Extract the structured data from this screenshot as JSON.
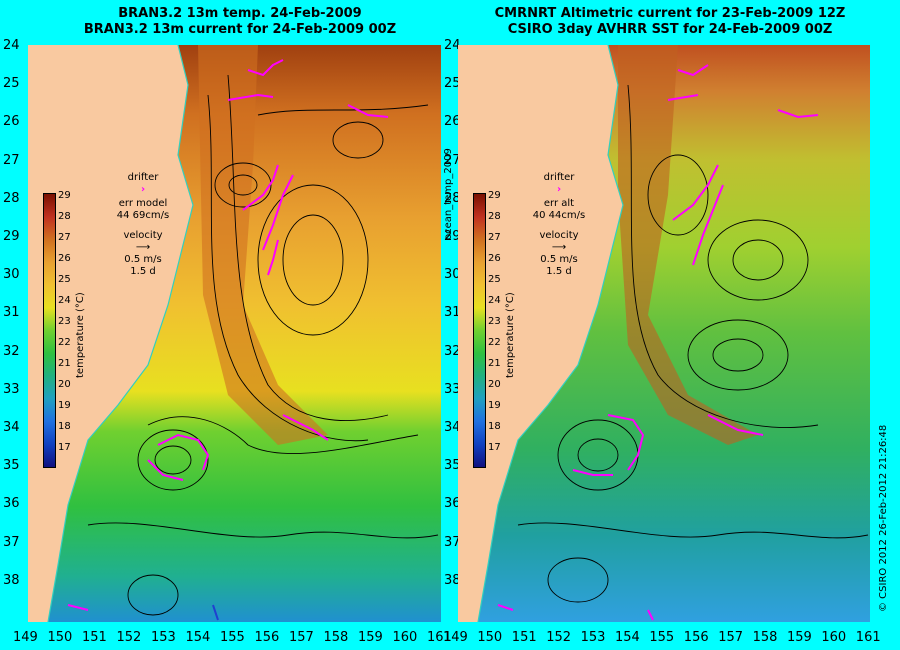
{
  "left_panel": {
    "title_line1": "BRAN3.2 13m temp. 24-Feb-2009",
    "title_line2": "BRAN3.2 13m current for 24-Feb-2009 00Z",
    "legend": {
      "drifter_label": "drifter",
      "err_label": "err model",
      "err_value": "44 69cm/s",
      "velocity_label": "velocity",
      "speed": "0.5 m/s",
      "duration": "1.5 d"
    }
  },
  "right_panel": {
    "title_line1": "CMRNRT Altimetric current for 23-Feb-2009 12Z",
    "title_line2": "CSIRO 3day AVHRR SST for 24-Feb-2009 00Z",
    "legend": {
      "drifter_label": "drifter",
      "err_label": "err alt",
      "err_value": "40 44cm/s",
      "velocity_label": "velocity",
      "speed": "0.5 m/s",
      "duration": "1.5 d"
    }
  },
  "colorbar": {
    "label": "temperature (°C)",
    "ticks": [
      "29",
      "28",
      "27",
      "26",
      "25",
      "24",
      "23",
      "22",
      "21",
      "20",
      "19",
      "18",
      "17"
    ]
  },
  "y_ticks": [
    "24",
    "25",
    "26",
    "27",
    "28",
    "29",
    "30",
    "31",
    "32",
    "33",
    "34",
    "35",
    "36",
    "37",
    "38"
  ],
  "x_ticks": [
    "149",
    "150",
    "151",
    "152",
    "153",
    "154",
    "155",
    "156",
    "157",
    "158",
    "159",
    "160",
    "161"
  ],
  "center_label": "ocean_temp_2009",
  "copyright": "© CSIRO 2012   26-Feb-2012 21:26:48",
  "colors": {
    "background": "#00ffff",
    "land": "#f9c9a0",
    "drifter": "#ff00ff",
    "coast_line": "#30d0c0"
  }
}
